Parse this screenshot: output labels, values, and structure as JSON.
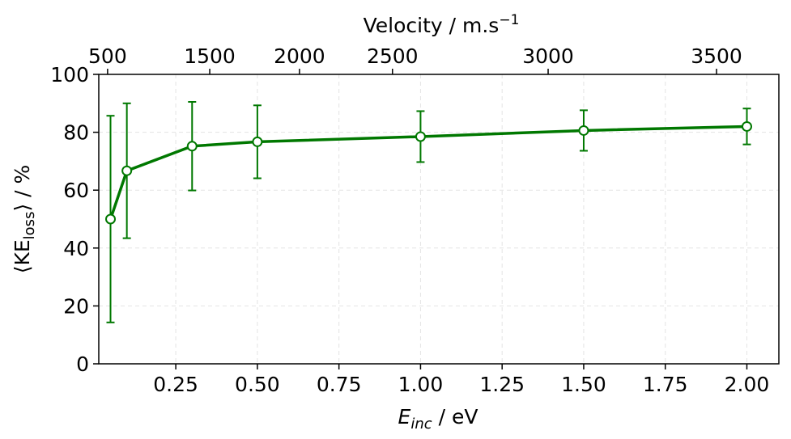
{
  "chart_data": {
    "type": "line",
    "xlabel": {
      "main": "E",
      "sub": "inc",
      "tail": " / eV"
    },
    "ylabel": {
      "main": "⟨KE",
      "sub": "loss",
      "tail": "⟩ / %"
    },
    "x2label": {
      "main": "Velocity / m.s",
      "sup": "−1"
    },
    "x": [
      0.05,
      0.1,
      0.3,
      0.5,
      1.0,
      1.5,
      2.0
    ],
    "series": [
      {
        "color": "#007800",
        "values": [
          50,
          66.7,
          75.2,
          76.7,
          78.5,
          80.6,
          82.0
        ],
        "errors": [
          35.7,
          23.3,
          15.3,
          12.6,
          8.8,
          7.0,
          6.2
        ]
      }
    ],
    "xlim": [
      0.014,
      2.098
    ],
    "xticks": [
      0.25,
      {
        "value": 0.5,
        "label": "0.50"
      },
      0.75,
      {
        "value": 1.0,
        "label": "1.00"
      },
      1.25,
      {
        "value": 1.5,
        "label": "1.50"
      },
      1.75,
      {
        "value": 2.0,
        "label": "2.00"
      }
    ],
    "x2ticks": [
      {
        "value": 0.041,
        "label": "500"
      },
      {
        "value": 0.354,
        "label": "1500"
      },
      {
        "value": 0.629,
        "label": "2000"
      },
      {
        "value": 0.914,
        "label": "2500"
      },
      {
        "value": 1.391,
        "label": "3000"
      },
      {
        "value": 1.907,
        "label": "3500"
      }
    ],
    "ylim": [
      0,
      100
    ],
    "yticks": [
      0,
      20,
      40,
      60,
      80,
      100
    ],
    "grid": true
  }
}
